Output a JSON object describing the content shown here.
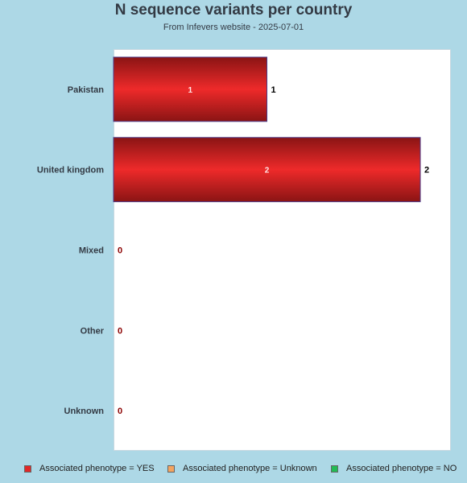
{
  "chart_data": {
    "type": "bar",
    "orientation": "horizontal",
    "title": "N sequence variants per country",
    "subtitle": "From Infevers website - 2025-07-01",
    "categories": [
      "Pakistan",
      "United kingdom",
      "Mixed",
      "Other",
      "Unknown"
    ],
    "series": [
      {
        "name": "Associated phenotype = YES",
        "values": [
          1,
          2,
          0,
          0,
          0
        ],
        "color": "#e02828"
      },
      {
        "name": "Associated phenotype = Unknown",
        "values": [
          0,
          0,
          0,
          0,
          0
        ],
        "color": "#f4a460"
      },
      {
        "name": "Associated phenotype = NO",
        "values": [
          0,
          0,
          0,
          0,
          0
        ],
        "color": "#22bb55"
      }
    ],
    "totals": [
      1,
      2,
      0,
      0,
      0
    ],
    "xlim": [
      0,
      2
    ],
    "grid": false,
    "legend_position": "bottom",
    "colors": {
      "background": "#add8e6",
      "plot_background": "#ffffff",
      "zero_label": "#8b0000",
      "total_label": "#000000"
    }
  }
}
